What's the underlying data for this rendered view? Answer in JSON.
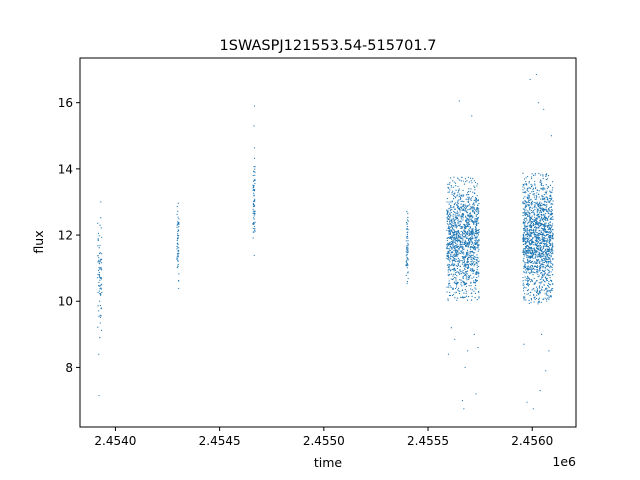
{
  "chart_data": {
    "type": "scatter",
    "title": "1SWASPJ121553.54-515701.7",
    "xlabel": "time",
    "ylabel": "flux",
    "x_offset_label": "1e6",
    "xlim": [
      2453830,
      2456210
    ],
    "ylim": [
      6.2,
      17.35
    ],
    "x_ticks": [
      2.454,
      2.4545,
      2.455,
      2.4555,
      2.456
    ],
    "x_tick_labels": [
      "2.4540",
      "2.4545",
      "2.4550",
      "2.4555",
      "2.4560"
    ],
    "y_ticks": [
      8,
      10,
      12,
      14,
      16
    ],
    "y_tick_labels": [
      "8",
      "10",
      "12",
      "14",
      "16"
    ],
    "grid": false,
    "marker_color": "#1f77b4",
    "series": [
      {
        "clusters": [
          {
            "x_start": 2453915,
            "x_end": 2453935,
            "y_mean": 11.0,
            "y_sd": 0.9,
            "n": 80
          },
          {
            "x_start": 2454295,
            "x_end": 2454305,
            "y_mean": 11.8,
            "y_sd": 0.65,
            "n": 60
          },
          {
            "x_start": 2454660,
            "x_end": 2454670,
            "y_mean": 13.0,
            "y_sd": 0.75,
            "n": 70
          },
          {
            "x_start": 2455395,
            "x_end": 2455405,
            "y_mean": 11.6,
            "y_sd": 0.65,
            "n": 60
          },
          {
            "x_start": 2455590,
            "x_end": 2455745,
            "y_mean": 11.9,
            "y_sd": 0.85,
            "n": 1300
          },
          {
            "x_start": 2455955,
            "x_end": 2456100,
            "y_mean": 11.9,
            "y_sd": 0.9,
            "n": 1500
          }
        ],
        "outliers": [
          [
            2453920,
            8.4
          ],
          [
            2453921,
            7.15
          ],
          [
            2453925,
            8.9
          ],
          [
            2453930,
            13.0
          ],
          [
            2454667,
            15.9
          ],
          [
            2454665,
            15.3
          ],
          [
            2455598,
            8.4
          ],
          [
            2455612,
            9.2
          ],
          [
            2455628,
            8.85
          ],
          [
            2455650,
            16.05
          ],
          [
            2455665,
            7.0
          ],
          [
            2455672,
            6.75
          ],
          [
            2455678,
            8.0
          ],
          [
            2455690,
            8.5
          ],
          [
            2455710,
            15.6
          ],
          [
            2455722,
            9.0
          ],
          [
            2455730,
            7.2
          ],
          [
            2455740,
            8.6
          ],
          [
            2455960,
            8.7
          ],
          [
            2455975,
            6.95
          ],
          [
            2455990,
            16.7
          ],
          [
            2456005,
            6.75
          ],
          [
            2456020,
            16.85
          ],
          [
            2456030,
            16.0
          ],
          [
            2456038,
            7.3
          ],
          [
            2456045,
            9.0
          ],
          [
            2456055,
            15.8
          ],
          [
            2456065,
            7.9
          ],
          [
            2456080,
            8.5
          ],
          [
            2456092,
            15.0
          ]
        ]
      }
    ]
  }
}
